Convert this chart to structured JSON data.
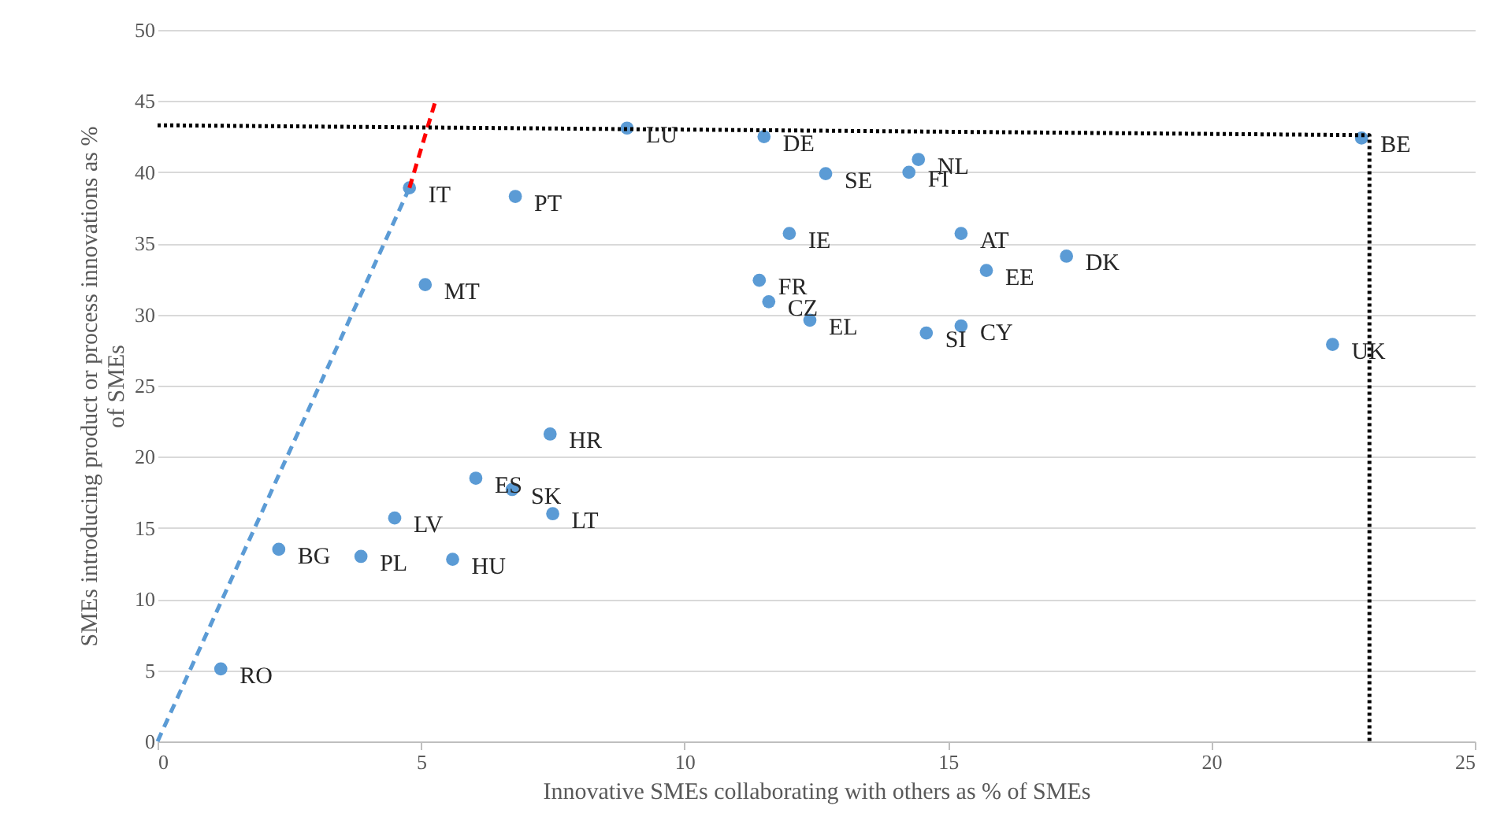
{
  "chart_data": {
    "type": "scatter",
    "xlabel": "Innovative SMEs collaborating with others as % of SMEs",
    "ylabel": "SMEs introducing product or process innovations as % of SMEs",
    "xlim": [
      0,
      25
    ],
    "xticks": [
      0,
      5,
      10,
      15,
      20,
      25
    ],
    "ylim": [
      0,
      50
    ],
    "yticks": [
      0,
      5,
      10,
      15,
      20,
      25,
      30,
      35,
      40,
      45,
      50
    ],
    "grid": "y",
    "series": [
      {
        "marker": "circle",
        "color": "#5b9bd5",
        "x": [
          1.2,
          2.3,
          3.86,
          5.6,
          4.5,
          6.04,
          6.73,
          7.5,
          7.45,
          5.08,
          4.78,
          6.79,
          8.91,
          11.51,
          12.68,
          14.26,
          14.44,
          11.99,
          11.42,
          11.6,
          12.38,
          14.59,
          15.25,
          15.25,
          15.73,
          17.25,
          22.3,
          22.85
        ],
        "values": [
          5.1,
          13.5,
          13.0,
          12.8,
          15.7,
          18.5,
          17.7,
          16.0,
          21.6,
          32.1,
          38.9,
          38.3,
          43.1,
          42.5,
          39.9,
          40.0,
          40.9,
          35.7,
          32.4,
          30.9,
          29.6,
          28.7,
          29.2,
          35.7,
          33.1,
          34.1,
          27.9,
          42.4
        ]
      },
      {
        "type": "line",
        "marker": "none",
        "color": "#5b9bd5",
        "line_style": "dashed",
        "x": [
          0,
          4.78
        ],
        "values": [
          0,
          38.9
        ]
      },
      {
        "type": "line",
        "marker": "none",
        "color": "#ff0000",
        "line_style": "dashed",
        "x": [
          4.78,
          5.29
        ],
        "values": [
          38.9,
          45.2
        ]
      },
      {
        "type": "line",
        "marker": "none",
        "color": "#000000",
        "line_style": "dotted",
        "x": [
          0,
          23,
          23
        ],
        "values": [
          43.3,
          42.6,
          0
        ]
      }
    ],
    "annotations": [
      {
        "text": "RO",
        "x": 1.2,
        "y": 5.1
      },
      {
        "text": "BG",
        "x": 2.3,
        "y": 13.5
      },
      {
        "text": "PL",
        "x": 3.86,
        "y": 13.0
      },
      {
        "text": "HU",
        "x": 5.6,
        "y": 12.8
      },
      {
        "text": "LV",
        "x": 4.5,
        "y": 15.7
      },
      {
        "text": "ES",
        "x": 6.04,
        "y": 18.5
      },
      {
        "text": "SK",
        "x": 6.73,
        "y": 17.7
      },
      {
        "text": "LT",
        "x": 7.5,
        "y": 16.0
      },
      {
        "text": "HR",
        "x": 7.45,
        "y": 21.6
      },
      {
        "text": "MT",
        "x": 5.08,
        "y": 32.1
      },
      {
        "text": "IT",
        "x": 4.78,
        "y": 38.9
      },
      {
        "text": "PT",
        "x": 6.79,
        "y": 38.3
      },
      {
        "text": "LU",
        "x": 8.91,
        "y": 43.1
      },
      {
        "text": "DE",
        "x": 11.51,
        "y": 42.5
      },
      {
        "text": "SE",
        "x": 12.68,
        "y": 39.9
      },
      {
        "text": "FI",
        "x": 14.26,
        "y": 40.0
      },
      {
        "text": "NL",
        "x": 14.44,
        "y": 40.9
      },
      {
        "text": "IE",
        "x": 11.99,
        "y": 35.7
      },
      {
        "text": "FR",
        "x": 11.42,
        "y": 32.4
      },
      {
        "text": "CZ",
        "x": 11.6,
        "y": 30.9
      },
      {
        "text": "EL",
        "x": 12.38,
        "y": 29.6
      },
      {
        "text": "SI",
        "x": 14.59,
        "y": 28.7
      },
      {
        "text": "CY",
        "x": 15.25,
        "y": 29.2
      },
      {
        "text": "AT",
        "x": 15.25,
        "y": 35.7
      },
      {
        "text": "EE",
        "x": 15.73,
        "y": 33.1
      },
      {
        "text": "DK",
        "x": 17.25,
        "y": 34.1
      },
      {
        "text": "UK",
        "x": 22.3,
        "y": 27.9
      },
      {
        "text": "BE",
        "x": 22.85,
        "y": 42.4
      }
    ]
  }
}
